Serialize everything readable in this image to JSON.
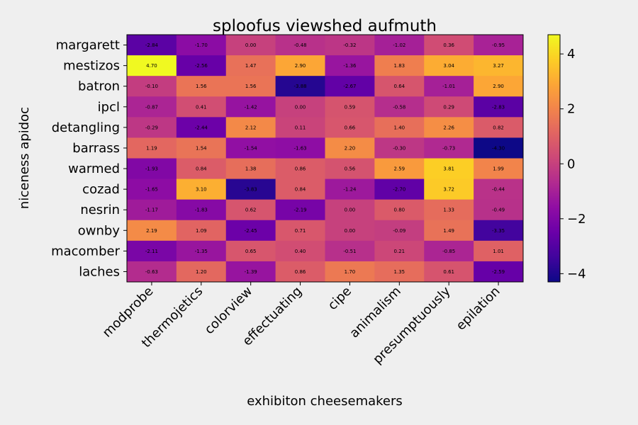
{
  "chart_data": {
    "type": "heatmap",
    "title": "sploofus viewshed aufmuth",
    "xlabel": "exhibiton cheesemakers",
    "ylabel": "niceness apidoc",
    "colormap": "plasma",
    "x_categories": [
      "modprobe",
      "thermojetics",
      "colorview",
      "effectuating",
      "cipe",
      "animalism",
      "presumptuously",
      "epilation"
    ],
    "y_categories": [
      "margarett",
      "mestizos",
      "batron",
      "ipcl",
      "detangling",
      "barrass",
      "warmed",
      "cozad",
      "nesrin",
      "ownby",
      "macomber",
      "laches"
    ],
    "values": [
      [
        -2.84,
        -1.7,
        0.0,
        -0.48,
        -0.32,
        -1.02,
        0.36,
        -0.95
      ],
      [
        4.7,
        -2.56,
        1.47,
        2.9,
        -1.36,
        1.83,
        3.04,
        3.27
      ],
      [
        -0.1,
        1.56,
        1.56,
        -3.88,
        -2.67,
        0.64,
        -1.01,
        2.9
      ],
      [
        -0.87,
        0.41,
        -1.42,
        0.0,
        0.59,
        -0.58,
        0.29,
        -2.83
      ],
      [
        -0.29,
        -2.44,
        2.12,
        0.11,
        0.66,
        1.4,
        2.26,
        0.82
      ],
      [
        1.19,
        1.54,
        -1.54,
        -1.63,
        2.2,
        -0.3,
        -0.73,
        -4.3
      ],
      [
        -1.93,
        0.84,
        1.38,
        0.86,
        0.56,
        2.59,
        3.81,
        1.99
      ],
      [
        -1.65,
        3.1,
        -3.83,
        0.84,
        -1.24,
        -2.7,
        3.72,
        -0.44
      ],
      [
        -1.17,
        -1.83,
        0.62,
        -2.19,
        0.0,
        0.8,
        1.33,
        -0.49
      ],
      [
        2.19,
        1.09,
        -2.45,
        0.71,
        0.0,
        -0.09,
        1.49,
        -3.35
      ],
      [
        -2.11,
        -1.35,
        0.65,
        0.4,
        -0.51,
        0.21,
        -0.85,
        1.01
      ],
      [
        -0.63,
        1.2,
        -1.39,
        0.86,
        1.7,
        1.35,
        0.61,
        -2.59
      ]
    ],
    "vmin": -4.3,
    "vmax": 4.7,
    "colorbar_ticks": [
      -4,
      -2,
      0,
      2,
      4
    ],
    "colorbar_tick_labels": [
      "−4",
      "−2",
      "0",
      "2",
      "4"
    ],
    "cell_value_format": "0.00",
    "grid": false
  }
}
